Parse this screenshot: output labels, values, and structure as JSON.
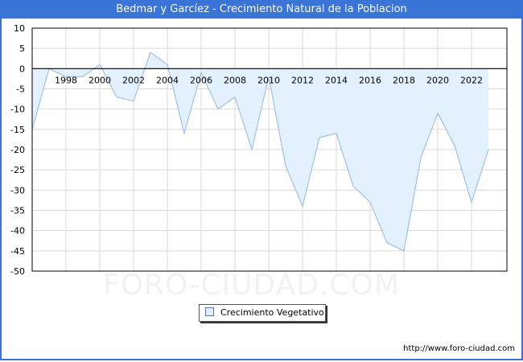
{
  "header": {
    "title": "Bedmar y Garcíez - Crecimiento Natural de la Poblacion"
  },
  "legend": {
    "label": "Crecimiento Vegetativo",
    "swatch_color": "#ddeeff"
  },
  "watermark": "FORO-CIUDAD.COM",
  "footer": {
    "url": "http://www.foro-ciudad.com"
  },
  "colors": {
    "title_bar": "#3a74d6",
    "line": "#a0c0ec",
    "area_fill": "#e3f0fd",
    "grid": "#d9d9d9"
  },
  "chart_data": {
    "type": "area",
    "title": "Bedmar y Garcíez - Crecimiento Natural de la Poblacion",
    "xlabel": "",
    "ylabel": "",
    "ylim": [
      -50,
      10
    ],
    "yticks": [
      10,
      5,
      0,
      -5,
      -10,
      -15,
      -20,
      -25,
      -30,
      -35,
      -40,
      -45,
      -50
    ],
    "xtick_labels": [
      "1998",
      "2000",
      "2002",
      "2004",
      "2006",
      "2008",
      "2010",
      "2012",
      "2014",
      "2016",
      "2018",
      "2020",
      "2022"
    ],
    "grid": true,
    "legend_position": "bottom-center",
    "x": [
      1996,
      1997,
      1998,
      1999,
      2000,
      2001,
      2002,
      2003,
      2004,
      2005,
      2006,
      2007,
      2008,
      2009,
      2010,
      2011,
      2012,
      2013,
      2014,
      2015,
      2016,
      2017,
      2018,
      2019,
      2020,
      2021,
      2022,
      2023
    ],
    "series": [
      {
        "name": "Crecimiento Vegetativo",
        "values": [
          -15,
          0,
          -2,
          -2,
          1,
          -7,
          -8,
          4,
          1,
          -16,
          -1,
          -10,
          -7,
          -20,
          -2,
          -24,
          -34,
          -17,
          -16,
          -29,
          -33,
          -43,
          -45,
          -22,
          -11,
          -19,
          -33,
          -20
        ]
      }
    ]
  }
}
